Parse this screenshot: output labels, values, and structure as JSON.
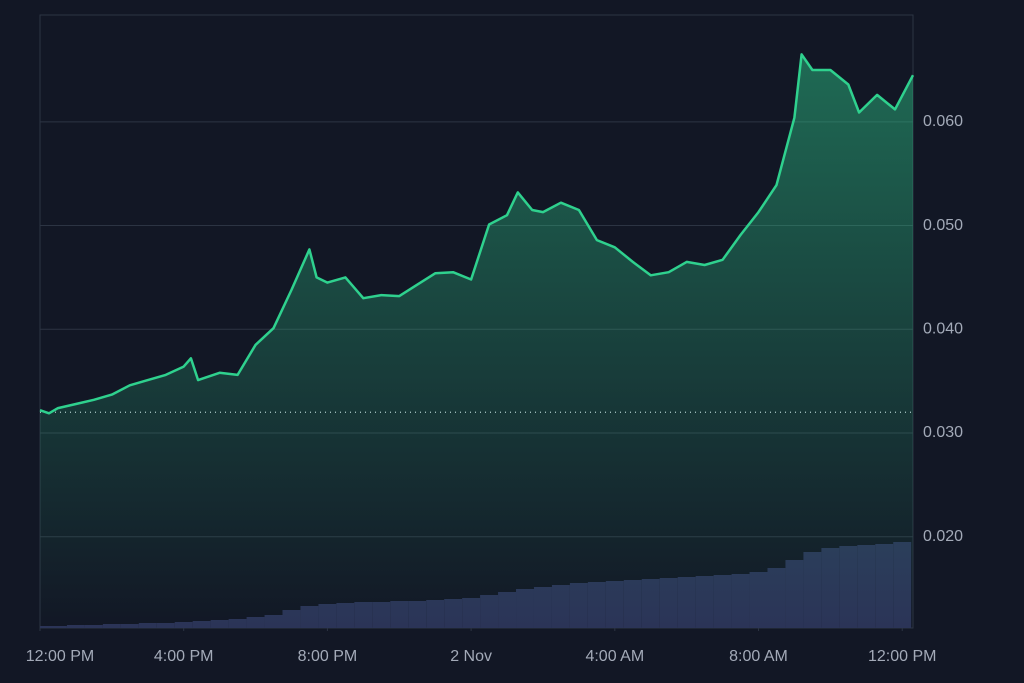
{
  "chart_data": {
    "type": "line",
    "line": {
      "color": "#2fd18e",
      "x": [
        0,
        0.25,
        0.5,
        1,
        1.5,
        2,
        2.5,
        3,
        3.5,
        4,
        4.2,
        4.4,
        5,
        5.5,
        6,
        6.5,
        7,
        7.5,
        7.7,
        8,
        8.5,
        9,
        9.5,
        10,
        10.5,
        11,
        11.5,
        12,
        12.5,
        13,
        13.3,
        13.7,
        14,
        14.5,
        15,
        15.5,
        16,
        16.5,
        17,
        17.5,
        18,
        18.5,
        19,
        19.5,
        20,
        20.5,
        21,
        21.2,
        21.5,
        22,
        22.5,
        22.8,
        23.3,
        23.8,
        24.3
      ],
      "values": [
        0.0322,
        0.0319,
        0.0324,
        0.0328,
        0.0332,
        0.0337,
        0.0346,
        0.0351,
        0.0356,
        0.0364,
        0.0372,
        0.0351,
        0.0358,
        0.0356,
        0.0385,
        0.0401,
        0.0438,
        0.0477,
        0.045,
        0.0445,
        0.045,
        0.043,
        0.0433,
        0.0432,
        0.0443,
        0.0454,
        0.0455,
        0.0448,
        0.0501,
        0.051,
        0.0532,
        0.0515,
        0.0513,
        0.0522,
        0.0515,
        0.0486,
        0.0479,
        0.0465,
        0.0452,
        0.0455,
        0.0465,
        0.0462,
        0.0467,
        0.0491,
        0.0513,
        0.0539,
        0.0604,
        0.0665,
        0.065,
        0.065,
        0.0636,
        0.0609,
        0.0626,
        0.0612,
        0.0645
      ]
    },
    "reference_value": 0.032,
    "volume": {
      "color": "#2b3457",
      "vlim": [
        0,
        100
      ],
      "x": [
        0,
        0.5,
        1,
        1.5,
        2,
        2.5,
        3,
        3.5,
        4,
        4.5,
        5,
        5.5,
        6,
        6.5,
        7,
        7.5,
        8,
        8.5,
        9,
        9.5,
        10,
        10.5,
        11,
        11.5,
        12,
        12.5,
        13,
        13.5,
        14,
        14.5,
        15,
        15.5,
        16,
        16.5,
        17,
        17.5,
        18,
        18.5,
        19,
        19.5,
        20,
        20.5,
        21,
        21.5,
        22,
        22.5,
        23,
        23.5,
        24
      ],
      "values": [
        2,
        2,
        3,
        3,
        4,
        4,
        5,
        5,
        6,
        7,
        8,
        9,
        11,
        13,
        18,
        22,
        24,
        25,
        26,
        26,
        27,
        27,
        28,
        29,
        30,
        33,
        36,
        39,
        41,
        43,
        45,
        46,
        47,
        48,
        49,
        50,
        51,
        52,
        53,
        54,
        56,
        60,
        68,
        76,
        80,
        82,
        83,
        84,
        86
      ]
    },
    "xlim": [
      0,
      24.3
    ],
    "xticks": [
      {
        "value": 0,
        "label": "12:00 PM"
      },
      {
        "value": 4,
        "label": "4:00 PM"
      },
      {
        "value": 8,
        "label": "8:00 PM"
      },
      {
        "value": 12,
        "label": "2 Nov"
      },
      {
        "value": 16,
        "label": "4:00 AM"
      },
      {
        "value": 20,
        "label": "8:00 AM"
      },
      {
        "value": 24,
        "label": "12:00 PM"
      }
    ],
    "ylim": [
      0.0112,
      0.0703
    ],
    "yticks": [
      {
        "value": 0.02,
        "label": "0.020"
      },
      {
        "value": 0.03,
        "label": "0.030"
      },
      {
        "value": 0.04,
        "label": "0.040"
      },
      {
        "value": 0.05,
        "label": "0.050"
      },
      {
        "value": 0.06,
        "label": "0.060"
      }
    ],
    "grid": true
  }
}
